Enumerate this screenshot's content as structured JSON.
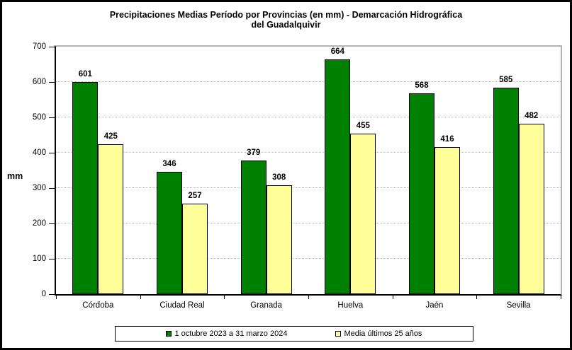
{
  "header": {
    "title_line1": "Precipitaciones Medias Período por Provincias (en mm) - Demarcación Hidrográfica",
    "title_line2": "del Guadalquivir"
  },
  "chart_data": {
    "type": "bar",
    "title": "Precipitaciones Medias Período por Provincias (en mm) - Demarcación Hidrográfica del Guadalquivir",
    "ylabel": "mm",
    "xlabel": "",
    "ylim": [
      0,
      700
    ],
    "yticks": [
      0,
      100,
      200,
      300,
      400,
      500,
      600,
      700
    ],
    "grid": true,
    "legend_position": "bottom",
    "categories": [
      "Córdoba",
      "Ciudad Real",
      "Granada",
      "Huelva",
      "Jaén",
      "Sevilla"
    ],
    "series": [
      {
        "name": "1 octubre 2023 a 31 marzo 2024",
        "color": "#008000",
        "values": [
          601,
          346,
          379,
          664,
          568,
          585
        ]
      },
      {
        "name": "Media últimos 25 años",
        "color": "#ffff99",
        "values": [
          425,
          257,
          308,
          455,
          416,
          482
        ]
      }
    ],
    "colors": {
      "bar_border": "#000000",
      "grid": "#bfbfbf",
      "plot_border": "#b3b3b3",
      "axis": "#000000",
      "text": "#000000"
    }
  }
}
